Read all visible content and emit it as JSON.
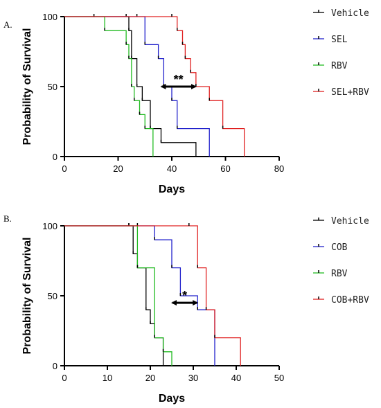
{
  "chart_data": [
    {
      "panel": "A.",
      "type": "line",
      "xlabel": "Days",
      "ylabel": "Probability of Survival",
      "xlim": [
        0,
        80
      ],
      "ylim": [
        0,
        100
      ],
      "xticks": [
        "0",
        "20",
        "40",
        "60",
        "80"
      ],
      "yticks": [
        "0",
        "50",
        "100"
      ],
      "grid": false,
      "legend_placement": "right",
      "annotation": {
        "label": "**",
        "x_from": 36,
        "x_to": 49,
        "y": 50
      },
      "series": [
        {
          "name": "Vehicle",
          "color": "#000000",
          "x": [
            0,
            23,
            24,
            25,
            27,
            29,
            32,
            36,
            49
          ],
          "y": [
            100,
            100,
            90,
            70,
            50,
            40,
            20,
            10,
            0
          ]
        },
        {
          "name": "SEL",
          "color": "#2222cc",
          "x": [
            0,
            27,
            30,
            35,
            37,
            40,
            42,
            54
          ],
          "y": [
            100,
            100,
            80,
            70,
            50,
            40,
            20,
            0
          ]
        },
        {
          "name": "RBV",
          "color": "#22bb22",
          "x": [
            0,
            11,
            15,
            23,
            24,
            25,
            26,
            28,
            30,
            33
          ],
          "y": [
            100,
            100,
            90,
            80,
            70,
            50,
            40,
            30,
            20,
            0
          ]
        },
        {
          "name": "SEL+RBV",
          "color": "#e02020",
          "x": [
            0,
            40,
            42,
            44,
            45,
            47,
            49,
            54,
            59,
            67
          ],
          "y": [
            100,
            100,
            90,
            80,
            70,
            60,
            50,
            40,
            20,
            0
          ]
        }
      ]
    },
    {
      "panel": "B.",
      "type": "line",
      "xlabel": "Days",
      "ylabel": "Probability of Survival",
      "xlim": [
        0,
        50
      ],
      "ylim": [
        0,
        100
      ],
      "xticks": [
        "0",
        "10",
        "20",
        "30",
        "40",
        "50"
      ],
      "yticks": [
        "0",
        "50",
        "100"
      ],
      "grid": false,
      "legend_placement": "right",
      "annotation": {
        "label": "*",
        "x_from": 25,
        "x_to": 31,
        "y": 45
      },
      "series": [
        {
          "name": "Vehicle",
          "color": "#000000",
          "x": [
            0,
            15,
            16,
            17,
            19,
            20,
            21,
            23
          ],
          "y": [
            100,
            100,
            80,
            70,
            40,
            30,
            20,
            0
          ]
        },
        {
          "name": "COB",
          "color": "#2222cc",
          "x": [
            0,
            17,
            21,
            25,
            27,
            31,
            35
          ],
          "y": [
            100,
            100,
            90,
            70,
            50,
            40,
            0
          ]
        },
        {
          "name": "RBV",
          "color": "#22bb22",
          "x": [
            0,
            15,
            17,
            19,
            21,
            23,
            25
          ],
          "y": [
            100,
            100,
            70,
            70,
            20,
            10,
            0
          ]
        },
        {
          "name": "COB+RBV",
          "color": "#e02020",
          "x": [
            0,
            29,
            31,
            33,
            35,
            41
          ],
          "y": [
            100,
            100,
            70,
            40,
            20,
            0
          ]
        }
      ]
    }
  ]
}
